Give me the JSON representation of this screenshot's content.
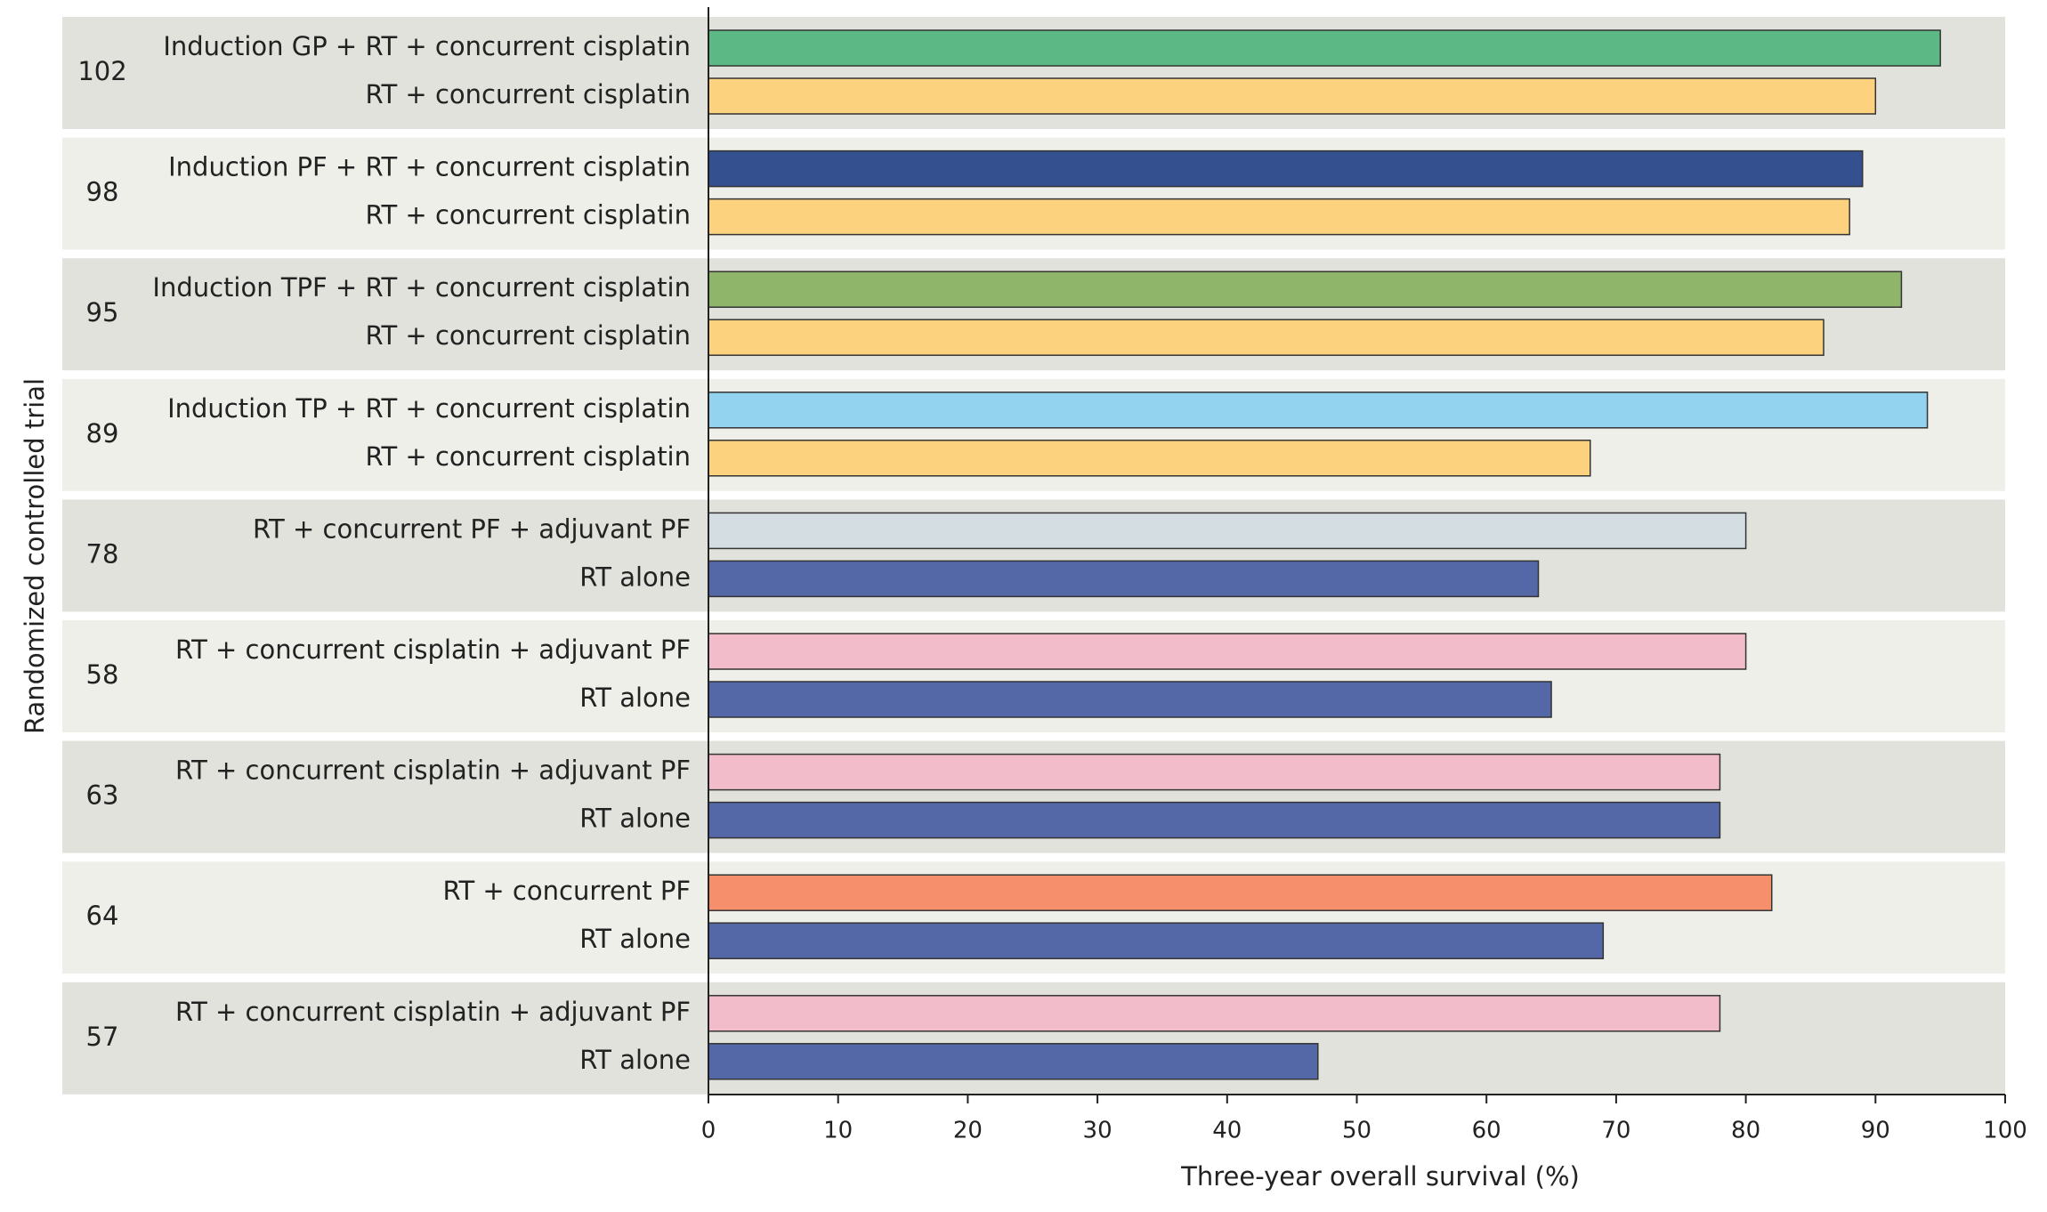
{
  "chart_data": {
    "type": "bar",
    "orientation": "horizontal",
    "xlabel": "Three-year overall survival (%)",
    "ylabel": "Randomized controlled trial",
    "xlim": [
      0,
      100
    ],
    "xticks": [
      0,
      10,
      20,
      30,
      40,
      50,
      60,
      70,
      80,
      90,
      100
    ],
    "groups": [
      {
        "label": "102",
        "bars": [
          {
            "name": "Induction GP + RT + concurrent cisplatin",
            "value": 95,
            "color": "#5cb885"
          },
          {
            "name": "RT + concurrent cisplatin",
            "value": 90,
            "color": "#fcd27e"
          }
        ]
      },
      {
        "label": "98",
        "bars": [
          {
            "name": "Induction PF + RT + concurrent cisplatin",
            "value": 89,
            "color": "#34508e"
          },
          {
            "name": "RT + concurrent cisplatin",
            "value": 88,
            "color": "#fcd27e"
          }
        ]
      },
      {
        "label": "95",
        "bars": [
          {
            "name": "Induction TPF + RT + concurrent cisplatin",
            "value": 92,
            "color": "#8fb56a"
          },
          {
            "name": "RT + concurrent cisplatin",
            "value": 86,
            "color": "#fcd27e"
          }
        ]
      },
      {
        "label": "89",
        "bars": [
          {
            "name": "Induction TP + RT + concurrent cisplatin",
            "value": 94,
            "color": "#93d3ef"
          },
          {
            "name": "RT + concurrent cisplatin",
            "value": 68,
            "color": "#fcd27e"
          }
        ]
      },
      {
        "label": "78",
        "bars": [
          {
            "name": "RT + concurrent PF + adjuvant PF",
            "value": 80,
            "color": "#d3dde2"
          },
          {
            "name": "RT alone",
            "value": 64,
            "color": "#5468a8"
          }
        ]
      },
      {
        "label": "58",
        "bars": [
          {
            "name": "RT + concurrent cisplatin + adjuvant PF",
            "value": 80,
            "color": "#f2bccb"
          },
          {
            "name": "RT alone",
            "value": 65,
            "color": "#5468a8"
          }
        ]
      },
      {
        "label": "63",
        "bars": [
          {
            "name": "RT + concurrent cisplatin + adjuvant PF",
            "value": 78,
            "color": "#f2bccb"
          },
          {
            "name": "RT alone",
            "value": 78,
            "color": "#5468a8"
          }
        ]
      },
      {
        "label": "64",
        "bars": [
          {
            "name": "RT + concurrent PF",
            "value": 82,
            "color": "#f58f6c"
          },
          {
            "name": "RT alone",
            "value": 69,
            "color": "#5468a8"
          }
        ]
      },
      {
        "label": "57",
        "bars": [
          {
            "name": "RT + concurrent cisplatin + adjuvant PF",
            "value": 78,
            "color": "#f2bccb"
          },
          {
            "name": "RT alone",
            "value": 47,
            "color": "#5468a8"
          }
        ]
      }
    ]
  }
}
